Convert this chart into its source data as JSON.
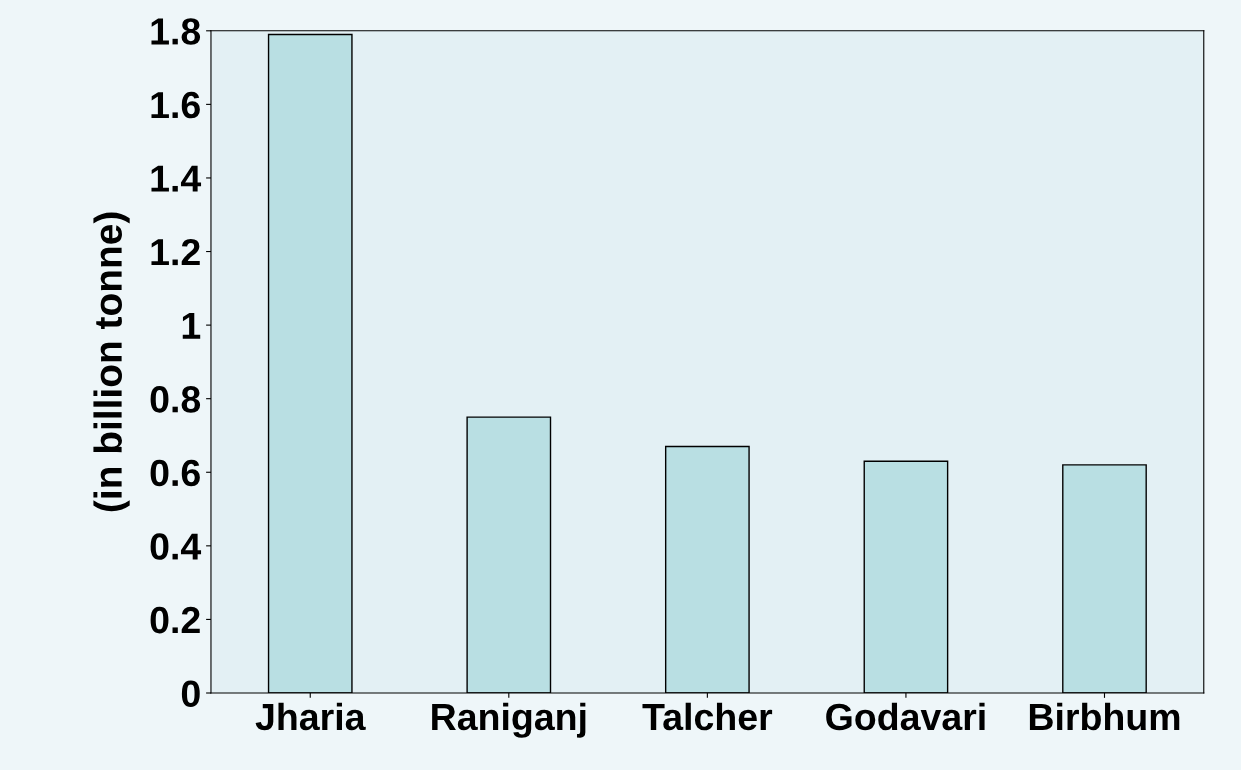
{
  "chart_data": {
    "type": "bar",
    "ylabel": "(in billion tonne)",
    "categories": [
      "Jharia",
      "Raniganj",
      "Talcher",
      "Godavari",
      "Birbhum"
    ],
    "values": [
      1.79,
      0.75,
      0.67,
      0.63,
      0.62
    ],
    "color": "#b9dfe3",
    "ylim": [
      0,
      1.8
    ],
    "yticks": [
      0,
      0.2,
      0.4,
      0.6,
      0.8,
      1,
      1.2,
      1.4,
      1.6,
      1.8
    ],
    "grid": false,
    "legend": false
  }
}
